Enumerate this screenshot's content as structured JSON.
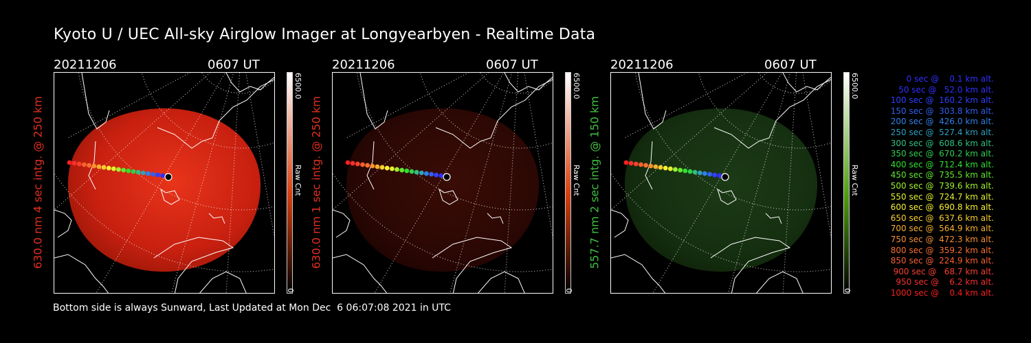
{
  "title": "Kyoto U / UEC All-sky Airglow Imager at Longyearbyen - Realtime Data",
  "panels": [
    {
      "date": "20211206",
      "time": "0607 UT",
      "side_label": "630.0 nm 4 sec intg. @ 250 km",
      "side_color": "#e03020",
      "cbar_max": "6500.0",
      "cbar_unit": "Raw Cnt",
      "cbar_zero": "0",
      "cbar_color": "#d84010"
    },
    {
      "date": "20211206",
      "time": "0607 UT",
      "side_label": "630.0 nm 1 sec intg. @ 250 km",
      "side_color": "#e03020",
      "cbar_max": "6500.0",
      "cbar_unit": "Raw Cnt",
      "cbar_zero": "0",
      "cbar_color": "#d84010"
    },
    {
      "date": "20211206",
      "time": "0607 UT",
      "side_label": "557.7 nm 2 sec intg. @ 150 km",
      "side_color": "#40c040",
      "cbar_max": "6500.0",
      "cbar_unit": "Raw Cnt",
      "cbar_zero": "0",
      "cbar_color": "#50a010"
    }
  ],
  "footer": "Bottom side is always Sunward, Last Updated at Mon Dec  6 06:07:08 2021 in UTC",
  "legend": [
    {
      "text": "   0 sec @    0.1 km alt.",
      "color": "#3030ff"
    },
    {
      "text": "  50 sec @   52.0 km alt.",
      "color": "#3030ff"
    },
    {
      "text": " 100 sec @  160.2 km alt.",
      "color": "#3040ff"
    },
    {
      "text": " 150 sec @  303.8 km alt.",
      "color": "#3060f0"
    },
    {
      "text": " 200 sec @  426.0 km alt.",
      "color": "#3080e8"
    },
    {
      "text": " 250 sec @  527.4 km alt.",
      "color": "#30a0c0"
    },
    {
      "text": " 300 sec @  608.6 km alt.",
      "color": "#30c080"
    },
    {
      "text": " 350 sec @  670.2 km alt.",
      "color": "#30d050"
    },
    {
      "text": " 400 sec @  712.4 km alt.",
      "color": "#30e030"
    },
    {
      "text": " 450 sec @  735.5 km alt.",
      "color": "#60e830"
    },
    {
      "text": " 500 sec @  739.6 km alt.",
      "color": "#a0f030"
    },
    {
      "text": " 550 sec @  724.7 km alt.",
      "color": "#e0f030"
    },
    {
      "text": " 600 sec @  690.8 km alt.",
      "color": "#f8f030"
    },
    {
      "text": " 650 sec @  637.6 km alt.",
      "color": "#f8d030"
    },
    {
      "text": " 700 sec @  564.9 km alt.",
      "color": "#f8b030"
    },
    {
      "text": " 750 sec @  472.3 km alt.",
      "color": "#f89030"
    },
    {
      "text": " 800 sec @  359.2 km alt.",
      "color": "#f87030"
    },
    {
      "text": " 850 sec @  224.9 km alt.",
      "color": "#f86030"
    },
    {
      "text": " 900 sec @   68.7 km alt.",
      "color": "#f84030"
    },
    {
      "text": " 950 sec @    6.2 km alt.",
      "color": "#f83030"
    },
    {
      "text": "1000 sec @    0.4 km alt.",
      "color": "#f82020"
    }
  ]
}
